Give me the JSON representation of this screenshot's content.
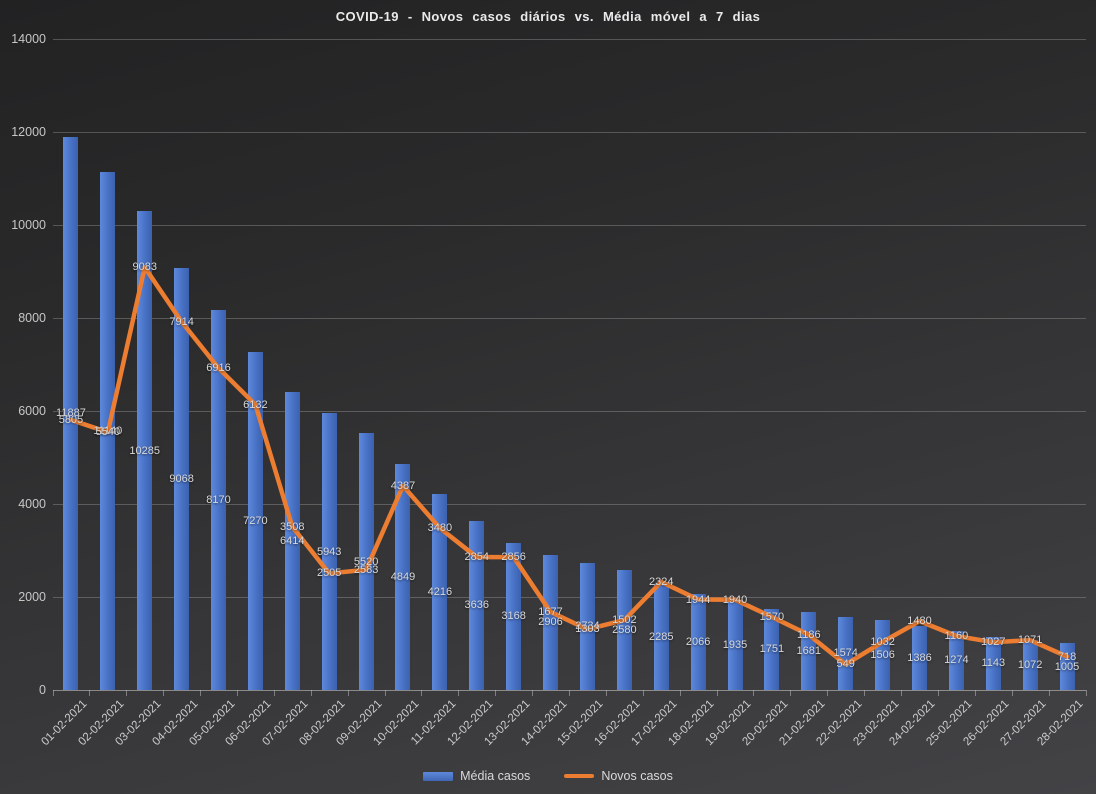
{
  "title": "COVID-19 - Novos casos diários vs. Média móvel a 7 dias",
  "colors": {
    "background_top": "#222223",
    "background_bottom": "#434346",
    "bar_fill": "#4a74c8",
    "line_stroke": "#ED7D31",
    "label_text": "#d9d9d9",
    "axis_text": "#c7c7c7",
    "gridline": "#6f6f6f"
  },
  "legend": {
    "position": "bottom",
    "items": [
      {
        "label": "Média casos",
        "marker": "bar-swatch",
        "color": "#4a74c8"
      },
      {
        "label": "Novos casos",
        "marker": "line-swatch",
        "color": "#ED7D31"
      }
    ]
  },
  "chart_data": {
    "type": "combo-bar-line",
    "title": "COVID-19 - Novos casos diários vs. Média móvel a 7 dias",
    "categories": [
      "01-02-2021",
      "02-02-2021",
      "03-02-2021",
      "04-02-2021",
      "05-02-2021",
      "06-02-2021",
      "07-02-2021",
      "08-02-2021",
      "09-02-2021",
      "10-02-2021",
      "11-02-2021",
      "12-02-2021",
      "13-02-2021",
      "14-02-2021",
      "15-02-2021",
      "16-02-2021",
      "17-02-2021",
      "18-02-2021",
      "19-02-2021",
      "20-02-2021",
      "21-02-2021",
      "22-02-2021",
      "23-02-2021",
      "24-02-2021",
      "25-02-2021",
      "26-02-2021",
      "27-02-2021",
      "28-02-2021"
    ],
    "series": [
      {
        "name": "Média casos",
        "type": "bar",
        "color": "#4a74c8",
        "values": [
          11887,
          11140,
          10285,
          9068,
          8170,
          7270,
          6414,
          5943,
          5520,
          4849,
          4216,
          3636,
          3168,
          2906,
          2734,
          2580,
          2285,
          2066,
          1935,
          1751,
          1681,
          1574,
          1506,
          1386,
          1274,
          1143,
          1072,
          1005
        ]
      },
      {
        "name": "Novos casos",
        "type": "line",
        "color": "#ED7D31",
        "values": [
          5805,
          5540,
          9083,
          7914,
          6916,
          6132,
          3508,
          2505,
          2583,
          4387,
          3480,
          2854,
          2856,
          1677,
          1303,
          1502,
          2324,
          1944,
          1940,
          1570,
          1186,
          549,
          1032,
          1480,
          1160,
          1027,
          1071,
          718
        ]
      }
    ],
    "y_axis": {
      "min": 0,
      "max": 14000,
      "tick_step": 2000,
      "ticks": [
        0,
        2000,
        4000,
        6000,
        8000,
        10000,
        12000,
        14000
      ]
    },
    "x_axis": {
      "label_rotation_deg": -45,
      "tick_marks": true
    },
    "grid": true,
    "data_labels": true,
    "bar_label_position": "inside-center",
    "line_label_position": "center",
    "legend_position": "bottom"
  }
}
